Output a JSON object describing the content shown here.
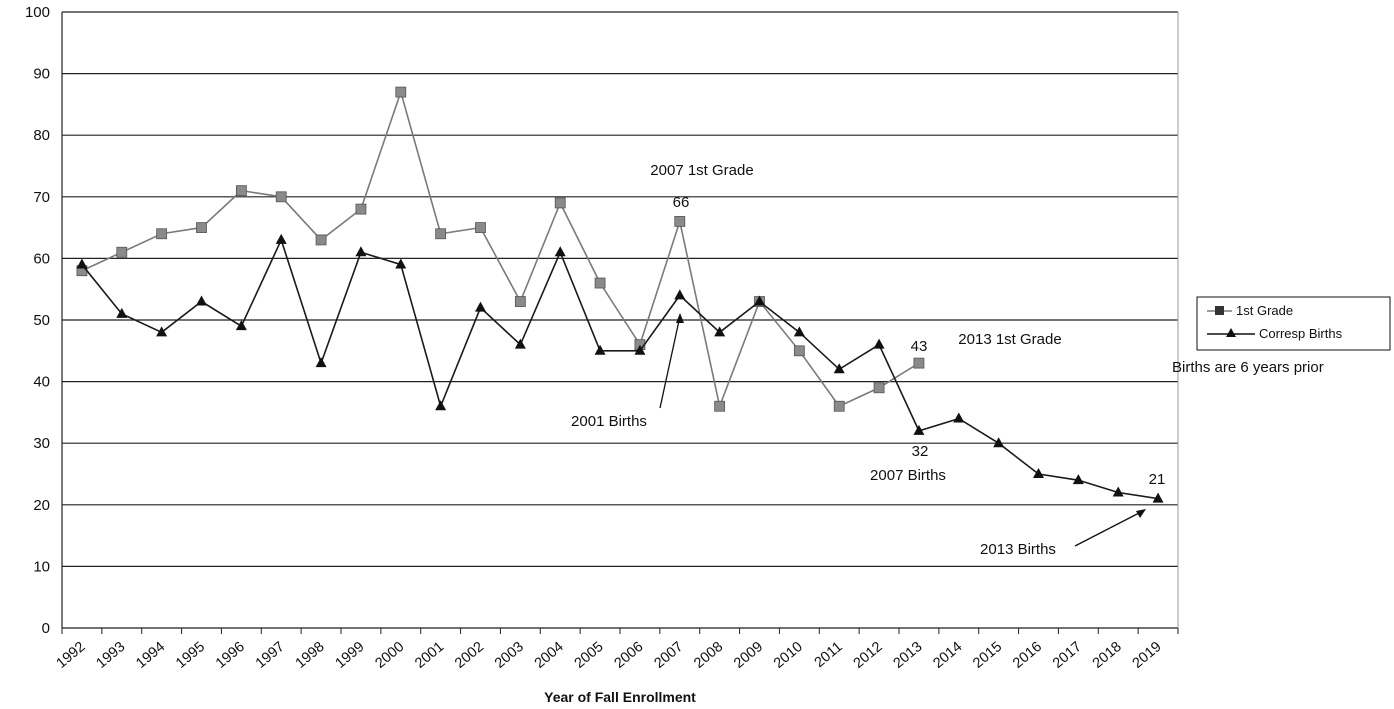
{
  "chart_data": {
    "type": "line",
    "title": "",
    "xlabel": "Year of Fall Enrollment",
    "ylabel": "",
    "ylim": [
      0,
      100
    ],
    "yticks": [
      0,
      10,
      20,
      30,
      40,
      50,
      60,
      70,
      80,
      90,
      100
    ],
    "grid": true,
    "legend_position": "right",
    "categories": [
      "1992",
      "1993",
      "1994",
      "1995",
      "1996",
      "1997",
      "1998",
      "1999",
      "2000",
      "2001",
      "2002",
      "2003",
      "2004",
      "2005",
      "2006",
      "2007",
      "2008",
      "2009",
      "2010",
      "2011",
      "2012",
      "2013",
      "2014",
      "2015",
      "2016",
      "2017",
      "2018",
      "2019"
    ],
    "series": [
      {
        "name": "1st Grade",
        "marker": "square",
        "color": "#7a7a7a",
        "values": [
          58,
          61,
          64,
          65,
          71,
          70,
          63,
          68,
          87,
          64,
          65,
          53,
          69,
          56,
          46,
          66,
          36,
          53,
          45,
          36,
          39,
          43,
          null,
          null,
          null,
          null,
          null,
          null
        ]
      },
      {
        "name": "Corresp Births",
        "marker": "triangle",
        "color": "#1a1a1a",
        "values": [
          59,
          51,
          48,
          53,
          49,
          63,
          43,
          61,
          59,
          36,
          52,
          46,
          61,
          45,
          45,
          54,
          48,
          53,
          48,
          42,
          46,
          32,
          34,
          30,
          25,
          24,
          22,
          21
        ]
      }
    ],
    "annotations": {
      "grade_2007": "2007 1st Grade",
      "val_66": "66",
      "births_2001": "2001 Births",
      "val_43": "43",
      "grade_2013": "2013 1st Grade",
      "val_32": "32",
      "births_2007": "2007 Births",
      "val_21": "21",
      "births_2013": "2013 Births",
      "note": "Births are 6 years prior"
    }
  }
}
